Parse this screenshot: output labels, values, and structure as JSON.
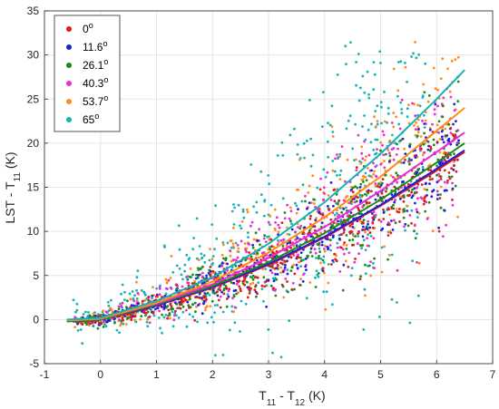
{
  "chart_data": {
    "type": "scatter",
    "title": "",
    "xlabel": {
      "main": "T",
      "sub1": "11",
      "mid": " - T",
      "sub2": "12",
      "unit": " (K)"
    },
    "ylabel": {
      "main": "LST - T",
      "sub": "11",
      "unit": " (K)"
    },
    "xlim": [
      -1,
      7
    ],
    "ylim": [
      -5,
      35
    ],
    "xticks": [
      "-1",
      "0",
      "1",
      "2",
      "3",
      "4",
      "5",
      "6",
      "7"
    ],
    "yticks": [
      "-5",
      "0",
      "5",
      "10",
      "15",
      "20",
      "25",
      "30",
      "35"
    ],
    "grid": true,
    "legend_position": "top-left",
    "series": [
      {
        "name": "0",
        "sup": "o",
        "color": "#e31a1c",
        "fit": [
          [
            -0.6,
            -0.2
          ],
          [
            0,
            0.0
          ],
          [
            1,
            1.6
          ],
          [
            2,
            3.6
          ],
          [
            3,
            6.2
          ],
          [
            4,
            9.3
          ],
          [
            5,
            12.9
          ],
          [
            6,
            16.9
          ],
          [
            6.5,
            19.0
          ]
        ]
      },
      {
        "name": "11.6",
        "sup": "o",
        "color": "#1f1fe0",
        "fit": [
          [
            -0.6,
            -0.2
          ],
          [
            0,
            0.0
          ],
          [
            1,
            1.6
          ],
          [
            2,
            3.7
          ],
          [
            3,
            6.3
          ],
          [
            4,
            9.4
          ],
          [
            5,
            13.0
          ],
          [
            6,
            17.1
          ],
          [
            6.5,
            19.2
          ]
        ]
      },
      {
        "name": "26.1",
        "sup": "o",
        "color": "#1a8c1a",
        "fit": [
          [
            -0.6,
            -0.2
          ],
          [
            0,
            0.0
          ],
          [
            1,
            1.7
          ],
          [
            2,
            3.8
          ],
          [
            3,
            6.5
          ],
          [
            4,
            9.8
          ],
          [
            5,
            13.6
          ],
          [
            6,
            17.8
          ],
          [
            6.5,
            20.0
          ]
        ]
      },
      {
        "name": "40.3",
        "sup": "o",
        "color": "#ee2bd6",
        "fit": [
          [
            -0.6,
            -0.1
          ],
          [
            0,
            0.1
          ],
          [
            1,
            1.8
          ],
          [
            2,
            4.0
          ],
          [
            3,
            7.0
          ],
          [
            4,
            10.5
          ],
          [
            5,
            14.6
          ],
          [
            6,
            19.0
          ],
          [
            6.5,
            21.2
          ]
        ]
      },
      {
        "name": "53.7",
        "sup": "o",
        "color": "#ff8c1a",
        "fit": [
          [
            -0.6,
            -0.1
          ],
          [
            0,
            0.1
          ],
          [
            1,
            1.9
          ],
          [
            2,
            4.3
          ],
          [
            3,
            7.6
          ],
          [
            4,
            11.6
          ],
          [
            5,
            16.2
          ],
          [
            6,
            21.4
          ],
          [
            6.5,
            24.0
          ]
        ]
      },
      {
        "name": "65",
        "sup": "o",
        "color": "#17b3b3",
        "fit": [
          [
            -0.6,
            0.0
          ],
          [
            0,
            0.2
          ],
          [
            1,
            2.1
          ],
          [
            2,
            4.8
          ],
          [
            3,
            8.6
          ],
          [
            4,
            13.3
          ],
          [
            5,
            18.8
          ],
          [
            6,
            25.0
          ],
          [
            6.5,
            28.3
          ]
        ]
      }
    ],
    "scatter_note_spread": [
      0.9,
      1.0,
      1.2,
      1.5,
      1.8,
      3.2
    ]
  }
}
